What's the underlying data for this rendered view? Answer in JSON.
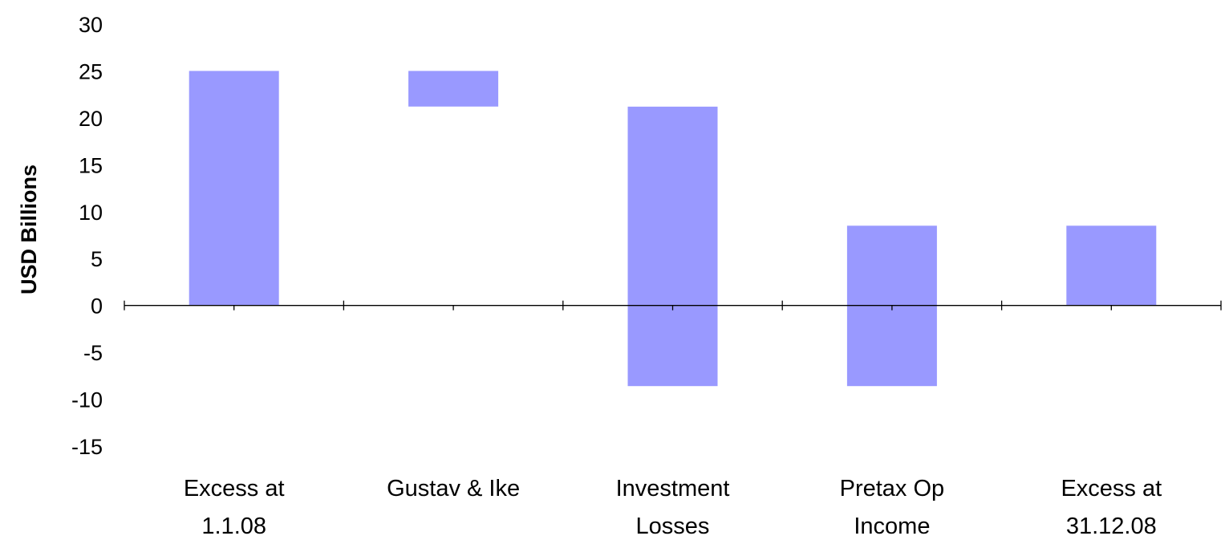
{
  "chart_data": {
    "type": "bar",
    "subtype": "waterfall (floating bars)",
    "title": "",
    "xlabel": "",
    "ylabel": "USD Billions",
    "ylim": [
      -15,
      30
    ],
    "yticks": [
      30,
      25,
      20,
      15,
      10,
      5,
      0,
      -5,
      -10,
      -15
    ],
    "categories": [
      {
        "lines": [
          "Excess at",
          "1.1.08"
        ]
      },
      {
        "lines": [
          "Gustav & Ike"
        ]
      },
      {
        "lines": [
          "Investment",
          "Losses"
        ]
      },
      {
        "lines": [
          "Pretax Op",
          "Income"
        ]
      },
      {
        "lines": [
          "Excess at",
          "31.12.08"
        ]
      }
    ],
    "bars": [
      {
        "low": 0,
        "high": 25.0
      },
      {
        "low": 21.2,
        "high": 25.0
      },
      {
        "low": -8.6,
        "high": 21.2
      },
      {
        "low": -8.6,
        "high": 8.5
      },
      {
        "low": 0,
        "high": 8.5
      }
    ],
    "bar_color": "#9999ff",
    "grid": false,
    "legend": "none"
  }
}
